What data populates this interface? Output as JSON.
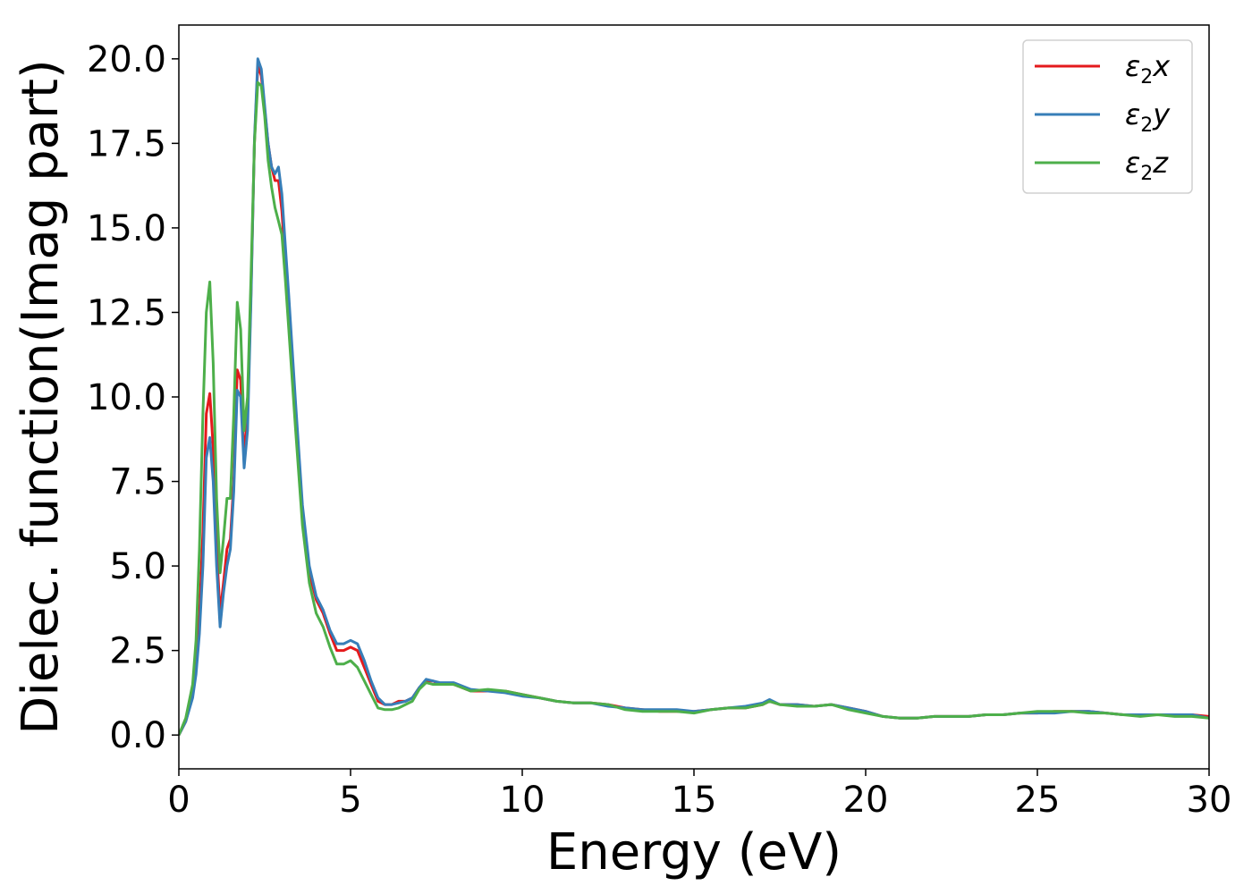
{
  "chart_data": {
    "type": "line",
    "title": "",
    "xlabel": "Energy (eV)",
    "ylabel": "Dielec. function(Imag part)",
    "xlim": [
      0,
      30
    ],
    "ylim": [
      -1.0,
      21.0
    ],
    "xticks": [
      0,
      5,
      10,
      15,
      20,
      25,
      30
    ],
    "xtick_labels": [
      "0",
      "5",
      "10",
      "15",
      "20",
      "25",
      "30"
    ],
    "yticks": [
      0,
      2.5,
      5,
      7.5,
      10,
      12.5,
      15,
      17.5,
      20
    ],
    "ytick_labels": [
      "0.0",
      "2.5",
      "5.0",
      "7.5",
      "10.0",
      "12.5",
      "15.0",
      "17.5",
      "20.0"
    ],
    "grid": false,
    "legend_position": "top-right",
    "series": [
      {
        "name": "ε₂x",
        "legend_base": "ε",
        "legend_sub": "2",
        "legend_suffix": "x",
        "color": "#e41a1c",
        "x": [
          0,
          0.2,
          0.4,
          0.5,
          0.6,
          0.7,
          0.8,
          0.9,
          1.0,
          1.1,
          1.2,
          1.3,
          1.4,
          1.5,
          1.6,
          1.7,
          1.8,
          1.9,
          2.0,
          2.1,
          2.2,
          2.3,
          2.4,
          2.5,
          2.6,
          2.7,
          2.8,
          2.9,
          3.0,
          3.1,
          3.2,
          3.4,
          3.6,
          3.8,
          4.0,
          4.2,
          4.4,
          4.6,
          4.8,
          5.0,
          5.2,
          5.4,
          5.6,
          5.8,
          6.0,
          6.2,
          6.4,
          6.6,
          6.8,
          7.0,
          7.2,
          7.4,
          7.6,
          7.8,
          8.0,
          8.5,
          9.0,
          9.5,
          10,
          10.5,
          11,
          11.5,
          12,
          12.5,
          13,
          13.5,
          14,
          14.5,
          15,
          15.5,
          16,
          16.5,
          17,
          17.2,
          17.5,
          18,
          18.5,
          19,
          19.5,
          20,
          20.5,
          21,
          21.5,
          22,
          22.5,
          23,
          23.5,
          24,
          24.5,
          25,
          25.5,
          26,
          26.5,
          27,
          27.5,
          28,
          28.5,
          29,
          29.5,
          30
        ],
        "values": [
          0,
          0.4,
          1.2,
          2.0,
          3.5,
          6.0,
          9.5,
          10.1,
          8.5,
          5.5,
          3.6,
          4.5,
          5.5,
          5.8,
          7.5,
          10.8,
          10.5,
          8.2,
          9.5,
          13.0,
          17.5,
          19.8,
          19.5,
          18.5,
          17.5,
          16.8,
          16.4,
          16.4,
          15.5,
          14.0,
          12.5,
          9.5,
          6.5,
          4.8,
          4.0,
          3.6,
          3.0,
          2.5,
          2.5,
          2.6,
          2.5,
          2.0,
          1.5,
          1.0,
          0.9,
          0.9,
          1.0,
          1.0,
          1.1,
          1.4,
          1.6,
          1.6,
          1.5,
          1.5,
          1.5,
          1.3,
          1.3,
          1.3,
          1.2,
          1.1,
          1.0,
          0.95,
          0.95,
          0.9,
          0.8,
          0.75,
          0.7,
          0.7,
          0.7,
          0.75,
          0.8,
          0.8,
          0.9,
          1.0,
          0.9,
          0.9,
          0.85,
          0.9,
          0.8,
          0.7,
          0.55,
          0.5,
          0.5,
          0.55,
          0.55,
          0.55,
          0.6,
          0.6,
          0.65,
          0.65,
          0.7,
          0.7,
          0.7,
          0.65,
          0.6,
          0.6,
          0.6,
          0.6,
          0.6,
          0.55
        ]
      },
      {
        "name": "ε₂y",
        "legend_base": "ε",
        "legend_sub": "2",
        "legend_suffix": "y",
        "color": "#377eb8",
        "x": [
          0,
          0.2,
          0.4,
          0.5,
          0.6,
          0.7,
          0.8,
          0.9,
          1.0,
          1.1,
          1.2,
          1.3,
          1.4,
          1.5,
          1.6,
          1.7,
          1.8,
          1.9,
          2.0,
          2.1,
          2.2,
          2.3,
          2.4,
          2.5,
          2.6,
          2.7,
          2.8,
          2.9,
          3.0,
          3.1,
          3.2,
          3.4,
          3.6,
          3.8,
          4.0,
          4.2,
          4.4,
          4.6,
          4.8,
          5.0,
          5.2,
          5.4,
          5.6,
          5.8,
          6.0,
          6.2,
          6.4,
          6.6,
          6.8,
          7.0,
          7.2,
          7.4,
          7.6,
          7.8,
          8.0,
          8.5,
          9.0,
          9.5,
          10,
          10.5,
          11,
          11.5,
          12,
          12.5,
          13,
          13.5,
          14,
          14.5,
          15,
          15.5,
          16,
          16.5,
          17,
          17.2,
          17.5,
          18,
          18.5,
          19,
          19.5,
          20,
          20.5,
          21,
          21.5,
          22,
          22.5,
          23,
          23.5,
          24,
          24.5,
          25,
          25.5,
          26,
          26.5,
          27,
          27.5,
          28,
          28.5,
          29,
          29.5,
          30
        ],
        "values": [
          0,
          0.4,
          1.1,
          1.8,
          3.0,
          5.0,
          8.2,
          8.8,
          7.5,
          5.0,
          3.2,
          4.2,
          5.0,
          5.5,
          7.2,
          10.2,
          10.0,
          7.9,
          9.0,
          12.8,
          17.6,
          20.0,
          19.7,
          18.6,
          17.5,
          16.8,
          16.6,
          16.8,
          16.0,
          14.5,
          13.0,
          9.8,
          6.8,
          5.0,
          4.1,
          3.7,
          3.1,
          2.7,
          2.7,
          2.8,
          2.7,
          2.2,
          1.6,
          1.1,
          0.9,
          0.9,
          0.95,
          1.0,
          1.1,
          1.4,
          1.65,
          1.6,
          1.55,
          1.55,
          1.55,
          1.35,
          1.3,
          1.25,
          1.15,
          1.1,
          1.0,
          0.95,
          0.95,
          0.85,
          0.8,
          0.75,
          0.75,
          0.75,
          0.7,
          0.75,
          0.8,
          0.85,
          0.95,
          1.05,
          0.9,
          0.9,
          0.85,
          0.9,
          0.8,
          0.7,
          0.55,
          0.5,
          0.5,
          0.55,
          0.55,
          0.55,
          0.6,
          0.6,
          0.65,
          0.65,
          0.65,
          0.7,
          0.7,
          0.65,
          0.6,
          0.6,
          0.6,
          0.6,
          0.6,
          0.5
        ]
      },
      {
        "name": "ε₂z",
        "legend_base": "ε",
        "legend_sub": "2",
        "legend_suffix": "z",
        "color": "#4daf4a",
        "x": [
          0,
          0.2,
          0.4,
          0.5,
          0.6,
          0.7,
          0.8,
          0.9,
          1.0,
          1.1,
          1.2,
          1.3,
          1.4,
          1.5,
          1.6,
          1.7,
          1.8,
          1.9,
          2.0,
          2.1,
          2.2,
          2.3,
          2.4,
          2.5,
          2.6,
          2.7,
          2.8,
          2.9,
          3.0,
          3.1,
          3.2,
          3.4,
          3.6,
          3.8,
          4.0,
          4.2,
          4.4,
          4.6,
          4.8,
          5.0,
          5.2,
          5.4,
          5.6,
          5.8,
          6.0,
          6.2,
          6.4,
          6.6,
          6.8,
          7.0,
          7.2,
          7.4,
          7.6,
          7.8,
          8.0,
          8.5,
          9.0,
          9.5,
          10,
          10.5,
          11,
          11.5,
          12,
          12.5,
          13,
          13.5,
          14,
          14.5,
          15,
          15.5,
          16,
          16.5,
          17,
          17.2,
          17.5,
          18,
          18.5,
          19,
          19.5,
          20,
          20.5,
          21,
          21.5,
          22,
          22.5,
          23,
          23.5,
          24,
          24.5,
          25,
          25.5,
          26,
          26.5,
          27,
          27.5,
          28,
          28.5,
          29,
          29.5,
          30
        ],
        "values": [
          0,
          0.5,
          1.5,
          2.8,
          5.5,
          9.5,
          12.5,
          13.4,
          11.0,
          7.0,
          4.8,
          5.8,
          7.0,
          7.0,
          9.5,
          12.8,
          12.0,
          9.0,
          10.0,
          13.5,
          17.5,
          19.3,
          19.2,
          18.3,
          17.0,
          16.2,
          15.6,
          15.2,
          14.8,
          13.5,
          12.0,
          9.0,
          6.2,
          4.5,
          3.6,
          3.2,
          2.6,
          2.1,
          2.1,
          2.2,
          2.0,
          1.6,
          1.2,
          0.8,
          0.75,
          0.75,
          0.8,
          0.9,
          1.0,
          1.35,
          1.55,
          1.5,
          1.5,
          1.5,
          1.5,
          1.3,
          1.35,
          1.3,
          1.2,
          1.1,
          1.0,
          0.95,
          0.95,
          0.9,
          0.75,
          0.7,
          0.7,
          0.7,
          0.65,
          0.75,
          0.8,
          0.8,
          0.9,
          1.0,
          0.9,
          0.85,
          0.85,
          0.9,
          0.75,
          0.65,
          0.55,
          0.5,
          0.5,
          0.55,
          0.55,
          0.55,
          0.6,
          0.6,
          0.65,
          0.7,
          0.7,
          0.7,
          0.65,
          0.65,
          0.6,
          0.55,
          0.6,
          0.55,
          0.55,
          0.5
        ]
      }
    ]
  }
}
